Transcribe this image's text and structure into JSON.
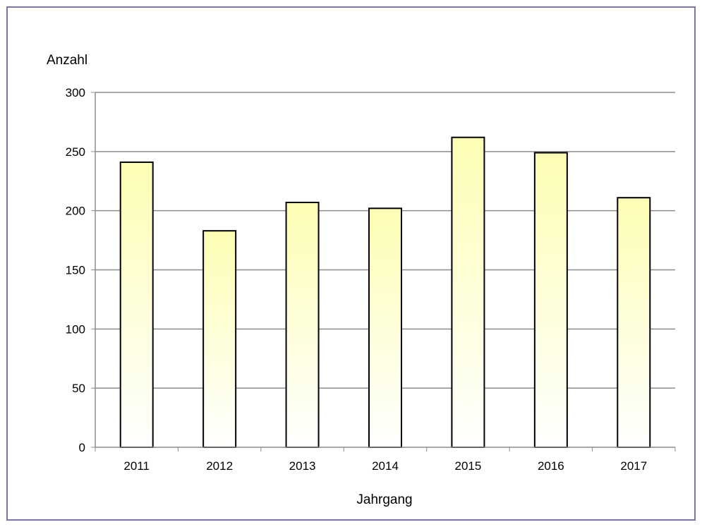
{
  "chart_data": {
    "type": "bar",
    "title": "",
    "xlabel": "Jahrgang",
    "ylabel": "Anzahl",
    "categories": [
      "2011",
      "2012",
      "2013",
      "2014",
      "2015",
      "2016",
      "2017"
    ],
    "values": [
      241,
      183,
      207,
      202,
      262,
      249,
      211
    ],
    "ylim": [
      0,
      300
    ],
    "yticks": [
      "0",
      "50",
      "100",
      "150",
      "200",
      "250",
      "300"
    ],
    "grid": true,
    "legend": "none",
    "colors": {
      "bar_top": "#fdfdb4",
      "bar_bottom": "#ffffff",
      "bar_outline": "#000000",
      "gridline": "#8c8c8c",
      "frame": "#7a76ad"
    }
  }
}
